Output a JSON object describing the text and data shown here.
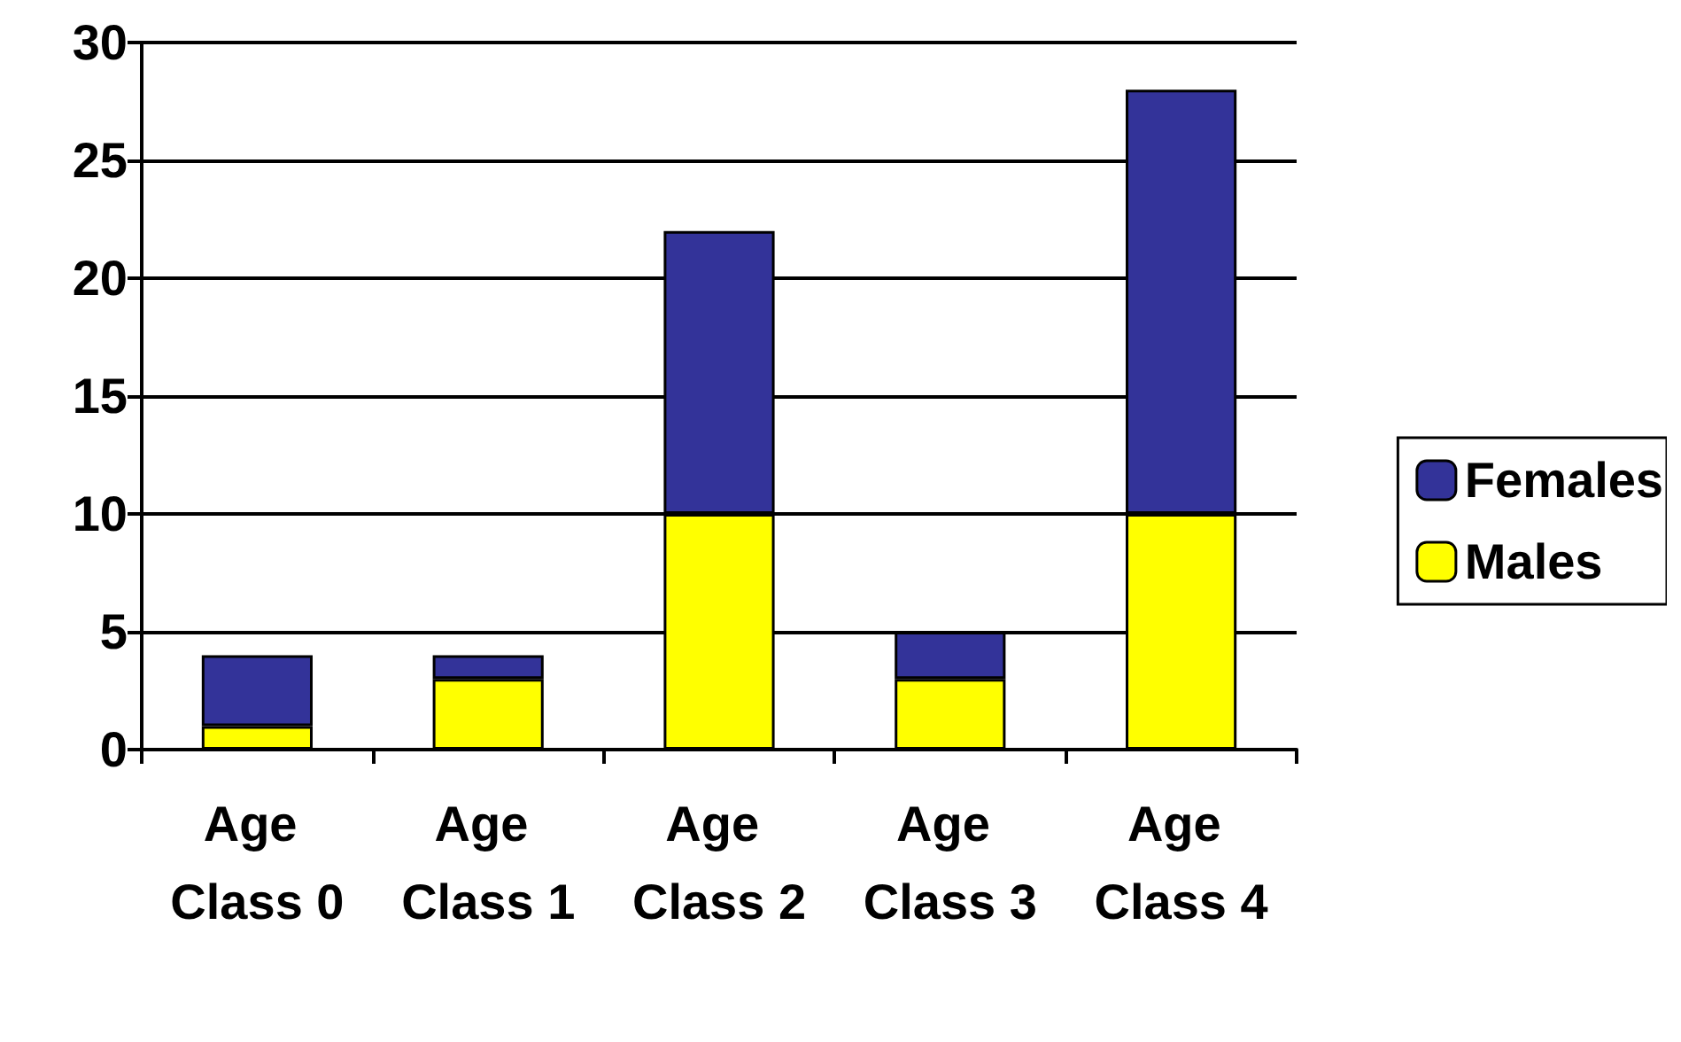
{
  "chart_data": {
    "type": "bar",
    "stacked": true,
    "categories": [
      "Age Class 0",
      "Age Class 1",
      "Age Class 2",
      "Age Class 3",
      "Age Class 4"
    ],
    "series": [
      {
        "name": "Males",
        "color": "#ffff00",
        "values": [
          1,
          3,
          10,
          3,
          10
        ]
      },
      {
        "name": "Females",
        "color": "#333399",
        "values": [
          3,
          1,
          12,
          2,
          18
        ]
      }
    ],
    "ylim": [
      0,
      30
    ],
    "yticks": [
      0,
      5,
      10,
      15,
      20,
      25,
      30
    ],
    "grid": "y",
    "legend": "right"
  }
}
